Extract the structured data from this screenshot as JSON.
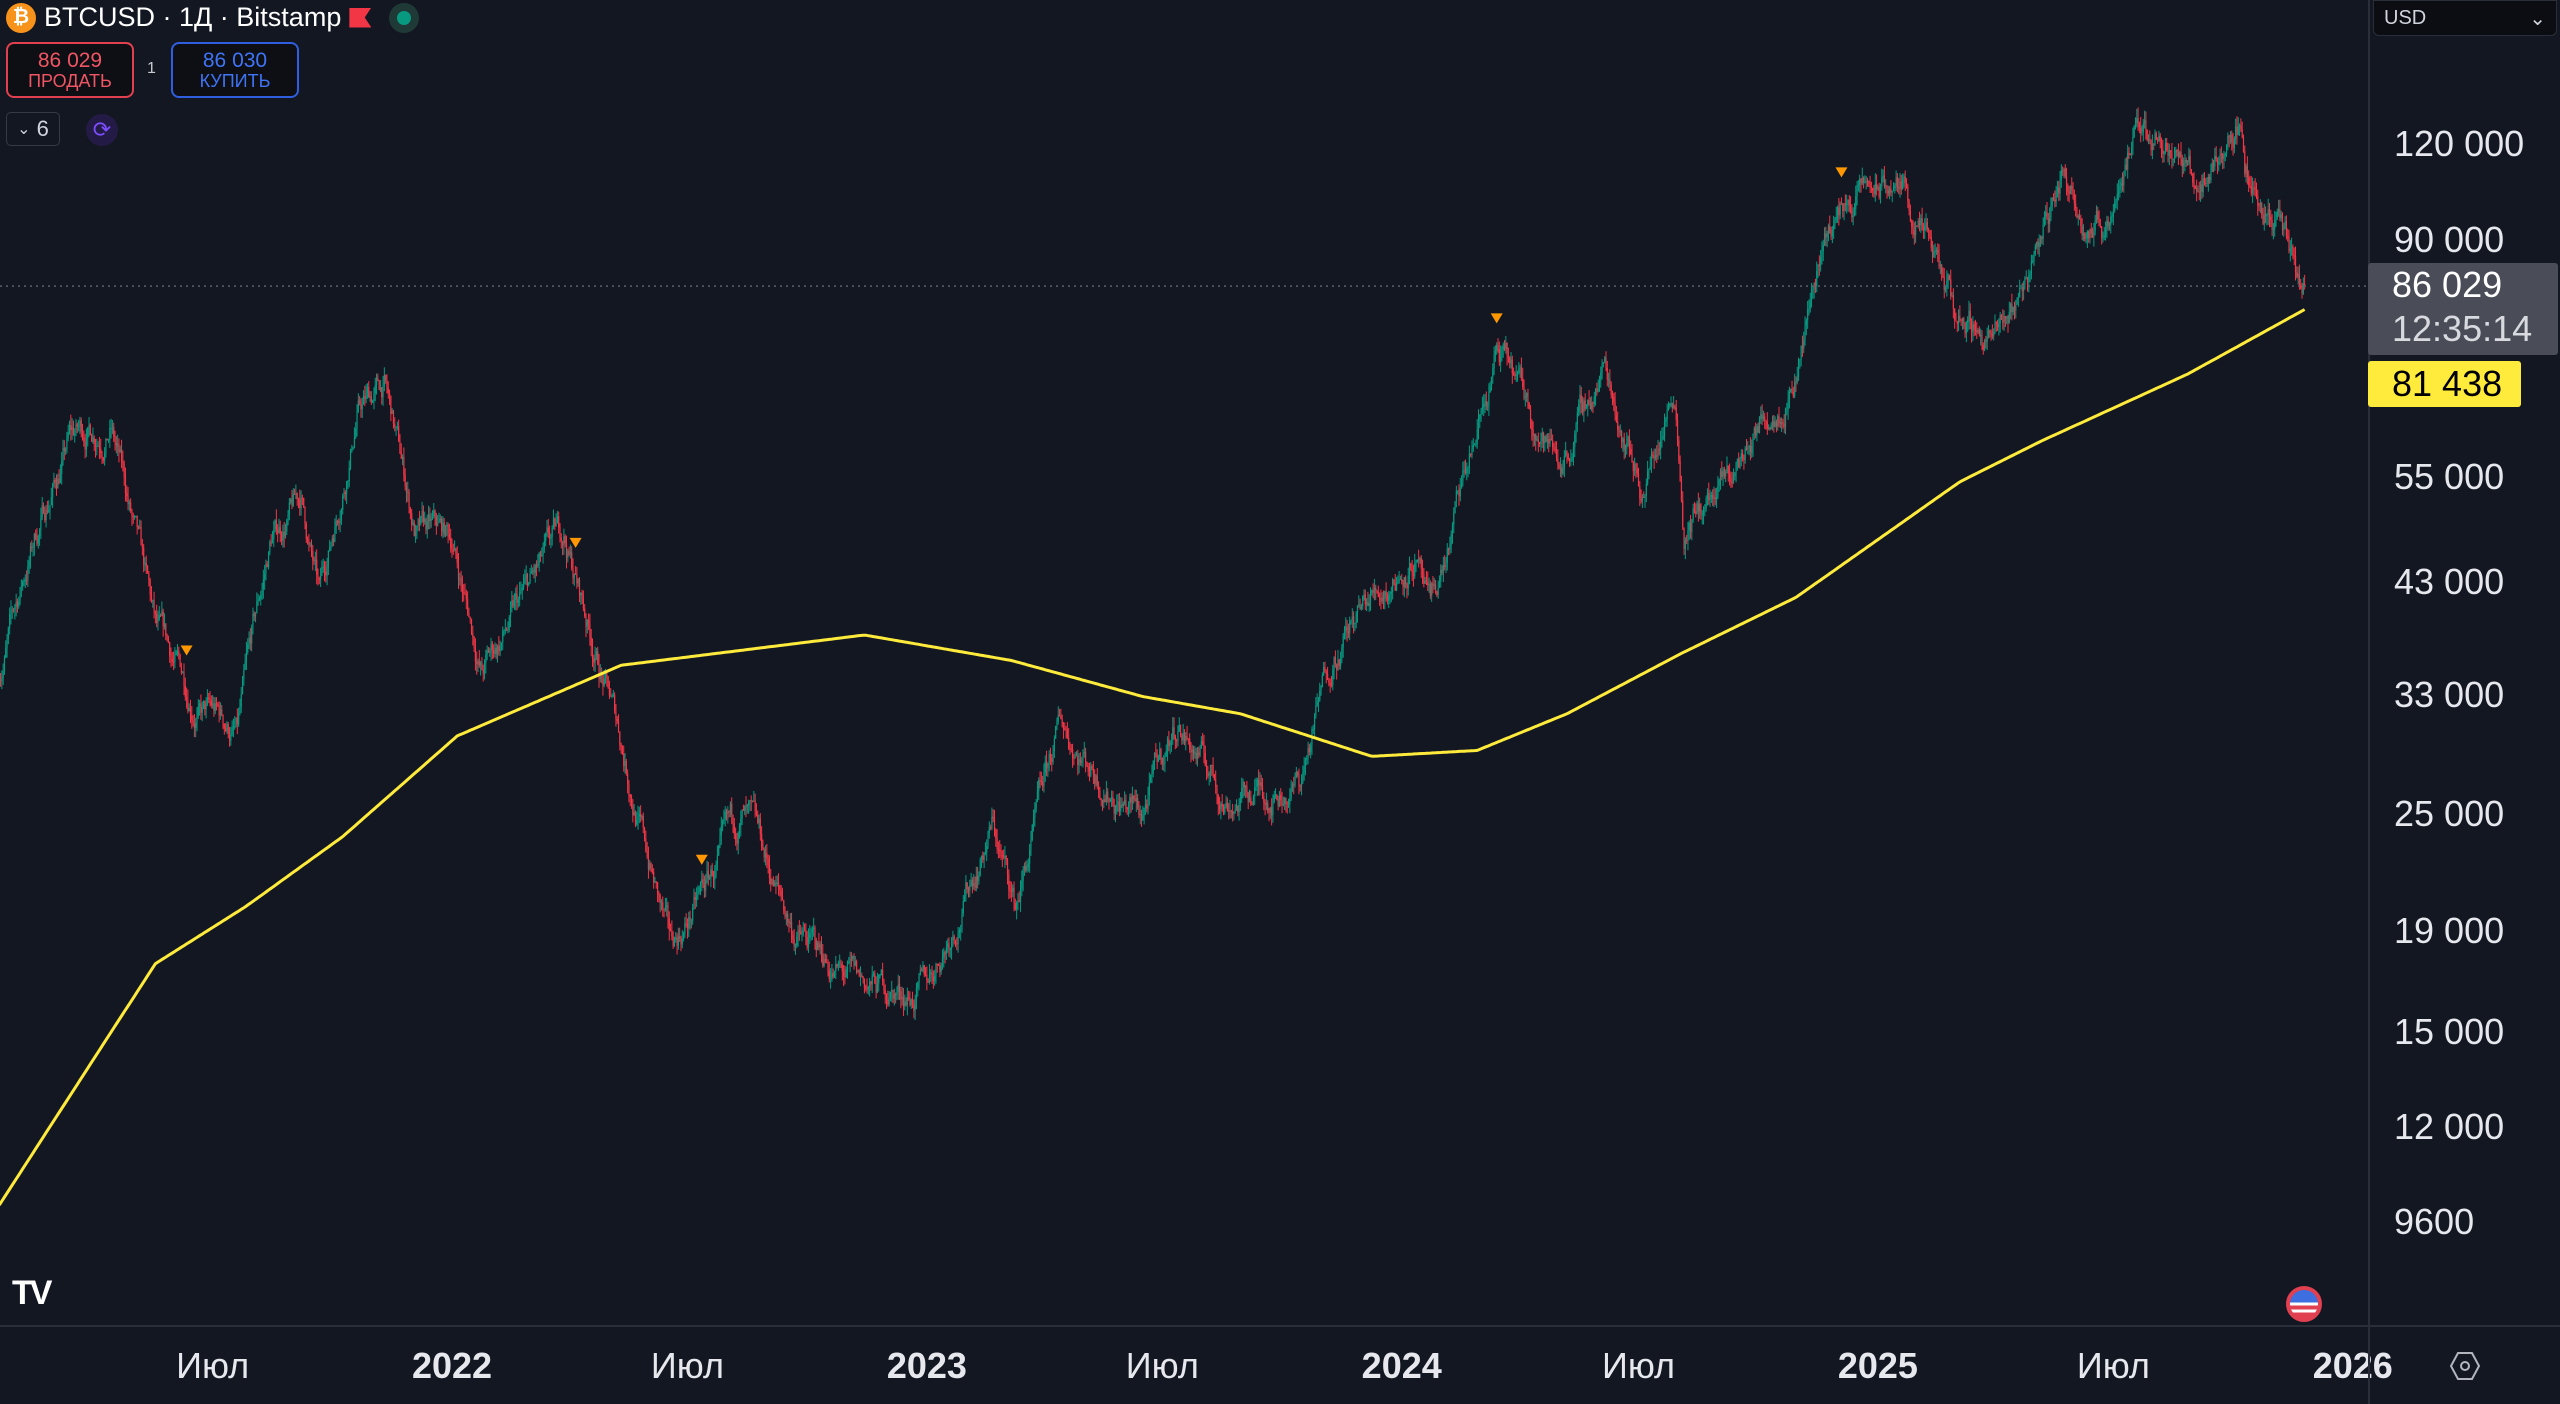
{
  "header": {
    "symbol": "BTCUSD · 1Д · Bitstamp",
    "coin_icon": "bitcoin-icon",
    "coin_glyph": "₿"
  },
  "trade": {
    "sell_price": "86 029",
    "sell_label": "ПРОДАТЬ",
    "spread": "1",
    "buy_price": "86 030",
    "buy_label": "КУПИТЬ"
  },
  "indicators": {
    "collapsed_count": "6"
  },
  "currency": "USD",
  "current": {
    "price": "86 029",
    "countdown": "12:35:14",
    "ma_value": "81 438"
  },
  "logo": "TV",
  "colors": {
    "up": "#089981",
    "down": "#f23645",
    "ma": "#ffeb3b",
    "marker": "#ff9800",
    "bg": "#131722"
  },
  "chart_data": {
    "type": "candlestick",
    "symbol": "BTCUSD",
    "interval": "1D",
    "scale": "log",
    "ylim": [
      7500,
      150000
    ],
    "xrange": [
      "2021-01-18",
      "2025-11-25"
    ],
    "price_ticks": [
      {
        "v": 120000,
        "t": "120 000"
      },
      {
        "v": 90000,
        "t": "90 000"
      },
      {
        "v": 55000,
        "t": "55 000"
      },
      {
        "v": 43000,
        "t": "43 000"
      },
      {
        "v": 33000,
        "t": "33 000"
      },
      {
        "v": 25000,
        "t": "25 000"
      },
      {
        "v": 19000,
        "t": "19 000"
      },
      {
        "v": 15000,
        "t": "15 000"
      },
      {
        "v": 12000,
        "t": "12 000"
      },
      {
        "v": 9600,
        "t": "9600"
      }
    ],
    "time_ticks": [
      {
        "d": "2021-07-01",
        "t": "Июл",
        "year": false
      },
      {
        "d": "2022-01-01",
        "t": "2022",
        "year": true
      },
      {
        "d": "2022-07-01",
        "t": "Июл",
        "year": false
      },
      {
        "d": "2023-01-01",
        "t": "2023",
        "year": true
      },
      {
        "d": "2023-07-01",
        "t": "Июл",
        "year": false
      },
      {
        "d": "2024-01-01",
        "t": "2024",
        "year": true
      },
      {
        "d": "2024-07-01",
        "t": "Июл",
        "year": false
      },
      {
        "d": "2025-01-01",
        "t": "2025",
        "year": true
      },
      {
        "d": "2025-07-01",
        "t": "Июл",
        "year": false
      },
      {
        "d": "2026-01-01",
        "t": "2026",
        "year": true
      }
    ],
    "price_anchors": [
      [
        "2021-01-18",
        35000
      ],
      [
        "2021-02-15",
        48000
      ],
      [
        "2021-03-13",
        60000
      ],
      [
        "2021-04-14",
        63000
      ],
      [
        "2021-05-19",
        37000
      ],
      [
        "2021-06-22",
        32000
      ],
      [
        "2021-07-20",
        30000
      ],
      [
        "2021-08-15",
        47000
      ],
      [
        "2021-09-07",
        52000
      ],
      [
        "2021-09-21",
        41000
      ],
      [
        "2021-10-20",
        65000
      ],
      [
        "2021-11-10",
        68000
      ],
      [
        "2021-12-04",
        48000
      ],
      [
        "2022-01-01",
        47000
      ],
      [
        "2022-01-24",
        35000
      ],
      [
        "2022-03-28",
        47500
      ],
      [
        "2022-05-10",
        30000
      ],
      [
        "2022-06-18",
        18000
      ],
      [
        "2022-08-13",
        24500
      ],
      [
        "2022-09-20",
        19000
      ],
      [
        "2022-11-09",
        16500
      ],
      [
        "2022-12-31",
        16500
      ],
      [
        "2023-02-20",
        24500
      ],
      [
        "2023-03-10",
        20000
      ],
      [
        "2023-04-14",
        30500
      ],
      [
        "2023-06-15",
        25000
      ],
      [
        "2023-07-13",
        31000
      ],
      [
        "2023-08-18",
        26000
      ],
      [
        "2023-10-15",
        27000
      ],
      [
        "2023-11-10",
        37000
      ],
      [
        "2024-01-11",
        46500
      ],
      [
        "2024-01-23",
        39000
      ],
      [
        "2024-03-14",
        73000
      ],
      [
        "2024-05-01",
        57000
      ],
      [
        "2024-06-05",
        71000
      ],
      [
        "2024-07-05",
        54000
      ],
      [
        "2024-07-29",
        69000
      ],
      [
        "2024-08-05",
        50000
      ],
      [
        "2024-09-06",
        53000
      ],
      [
        "2024-10-29",
        72000
      ],
      [
        "2024-11-22",
        99000
      ],
      [
        "2024-12-17",
        107000
      ],
      [
        "2025-01-20",
        108000
      ],
      [
        "2025-02-28",
        80000
      ],
      [
        "2025-04-08",
        76000
      ],
      [
        "2025-05-22",
        111000
      ],
      [
        "2025-06-22",
        99000
      ],
      [
        "2025-07-14",
        122000
      ],
      [
        "2025-08-14",
        124000
      ],
      [
        "2025-09-01",
        108000
      ],
      [
        "2025-10-06",
        126000
      ],
      [
        "2025-10-10",
        112000
      ],
      [
        "2025-11-05",
        101000
      ],
      [
        "2025-11-21",
        84000
      ],
      [
        "2025-11-25",
        86029
      ]
    ],
    "ma_series": [
      [
        "2021-01-18",
        10000
      ],
      [
        "2021-05-18",
        17600
      ],
      [
        "2021-07-26",
        20100
      ],
      [
        "2021-10-09",
        23700
      ],
      [
        "2022-01-05",
        30000
      ],
      [
        "2022-05-11",
        35400
      ],
      [
        "2022-11-14",
        38000
      ],
      [
        "2023-03-07",
        35800
      ],
      [
        "2023-06-16",
        32900
      ],
      [
        "2023-08-30",
        31600
      ],
      [
        "2023-12-09",
        28600
      ],
      [
        "2024-02-28",
        29000
      ],
      [
        "2024-05-07",
        31600
      ],
      [
        "2024-08-03",
        36400
      ],
      [
        "2024-10-30",
        41500
      ],
      [
        "2025-03-05",
        54400
      ],
      [
        "2025-05-06",
        59800
      ],
      [
        "2025-08-27",
        70000
      ],
      [
        "2025-11-25",
        81438
      ]
    ],
    "event_markers": [
      "2021-06-11",
      "2022-04-06",
      "2022-07-12",
      "2024-03-14",
      "2024-12-04"
    ],
    "last_price": 86029
  }
}
